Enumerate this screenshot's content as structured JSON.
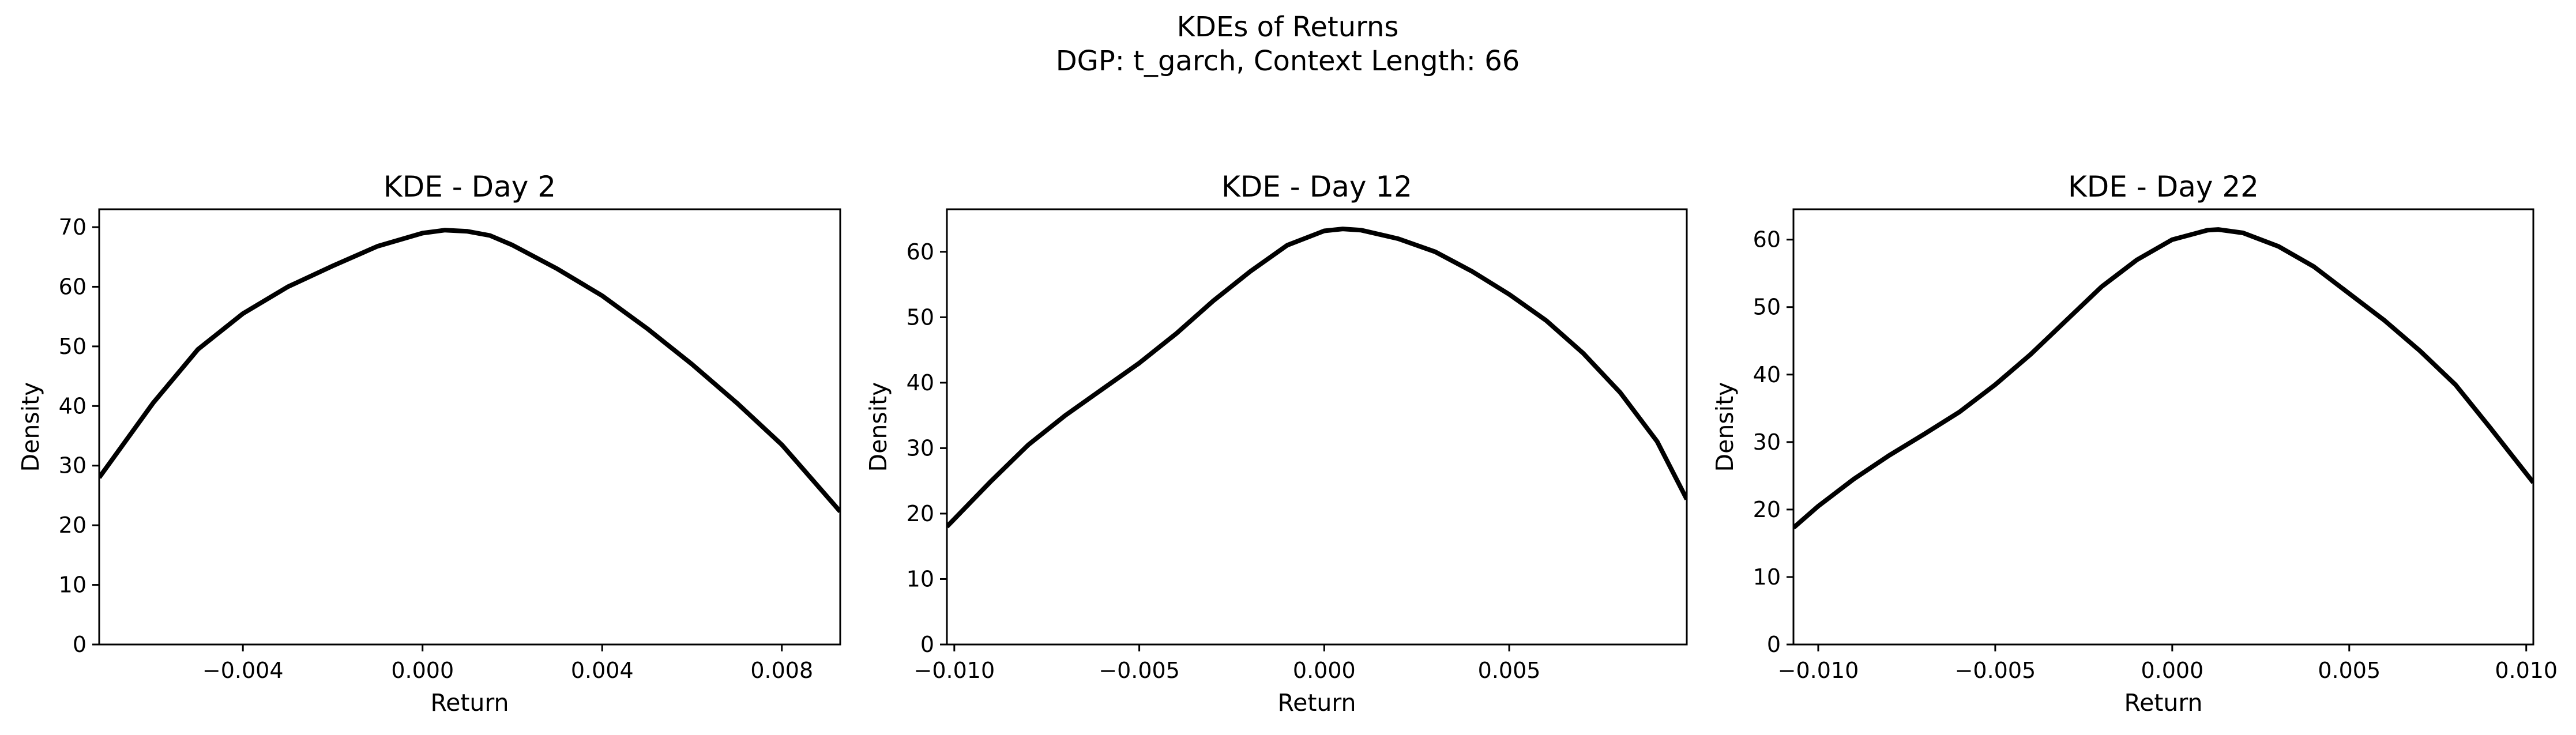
{
  "figure": {
    "title_line1": "KDEs of Returns",
    "title_line2": "DGP: t_garch, Context Length: 66"
  },
  "chart_data": [
    {
      "type": "line",
      "title": "KDE - Day 2",
      "xlabel": "Return",
      "ylabel": "Density",
      "xlim": [
        -0.0072,
        0.0093
      ],
      "ylim": [
        0,
        73
      ],
      "xticks": [
        -0.004,
        0.0,
        0.004,
        0.008
      ],
      "xtick_labels": [
        "−0.004",
        "0.000",
        "0.004",
        "0.008"
      ],
      "yticks": [
        0,
        10,
        20,
        30,
        40,
        50,
        60,
        70
      ],
      "ytick_labels": [
        "0",
        "10",
        "20",
        "30",
        "40",
        "50",
        "60",
        "70"
      ],
      "grid": false,
      "line_color": "#000000",
      "series": [
        {
          "x": [
            -0.0072,
            -0.006,
            -0.005,
            -0.004,
            -0.003,
            -0.002,
            -0.001,
            0.0,
            0.0005,
            0.001,
            0.0015,
            0.002,
            0.003,
            0.004,
            0.005,
            0.006,
            0.007,
            0.008,
            0.0093
          ],
          "y": [
            28,
            40.5,
            49.5,
            55.5,
            60,
            63.5,
            66.8,
            69,
            69.5,
            69.3,
            68.6,
            67,
            63,
            58.5,
            53,
            47,
            40.5,
            33.5,
            22.3
          ]
        }
      ]
    },
    {
      "type": "line",
      "title": "KDE - Day 12",
      "xlabel": "Return",
      "ylabel": "Density",
      "xlim": [
        -0.0102,
        0.0098
      ],
      "ylim": [
        0,
        66.5
      ],
      "xticks": [
        -0.01,
        -0.005,
        0.0,
        0.005
      ],
      "xtick_labels": [
        "−0.010",
        "−0.005",
        "0.000",
        "0.005"
      ],
      "yticks": [
        0,
        10,
        20,
        30,
        40,
        50,
        60
      ],
      "ytick_labels": [
        "0",
        "10",
        "20",
        "30",
        "40",
        "50",
        "60"
      ],
      "grid": false,
      "line_color": "#000000",
      "series": [
        {
          "x": [
            -0.0102,
            -0.009,
            -0.008,
            -0.007,
            -0.006,
            -0.005,
            -0.004,
            -0.003,
            -0.002,
            -0.001,
            0.0,
            0.0005,
            0.001,
            0.002,
            0.003,
            0.004,
            0.005,
            0.006,
            0.007,
            0.008,
            0.009,
            0.0098
          ],
          "y": [
            18,
            25,
            30.5,
            35,
            39,
            43,
            47.5,
            52.5,
            57,
            61,
            63.2,
            63.5,
            63.3,
            62,
            60,
            57,
            53.5,
            49.5,
            44.5,
            38.5,
            31,
            22.2
          ]
        }
      ]
    },
    {
      "type": "line",
      "title": "KDE - Day 22",
      "xlabel": "Return",
      "ylabel": "Density",
      "xlim": [
        -0.0107,
        0.0102
      ],
      "ylim": [
        0,
        64.5
      ],
      "xticks": [
        -0.01,
        -0.005,
        0.0,
        0.005,
        0.01
      ],
      "xtick_labels": [
        "−0.010",
        "−0.005",
        "0.000",
        "0.005",
        "0.010"
      ],
      "yticks": [
        0,
        10,
        20,
        30,
        40,
        50,
        60
      ],
      "ytick_labels": [
        "0",
        "10",
        "20",
        "30",
        "40",
        "50",
        "60"
      ],
      "grid": false,
      "line_color": "#000000",
      "series": [
        {
          "x": [
            -0.0107,
            -0.01,
            -0.009,
            -0.008,
            -0.007,
            -0.006,
            -0.005,
            -0.004,
            -0.003,
            -0.002,
            -0.001,
            0.0,
            0.001,
            0.0013,
            0.002,
            0.003,
            0.004,
            0.005,
            0.006,
            0.007,
            0.008,
            0.009,
            0.0102
          ],
          "y": [
            17.3,
            20.5,
            24.5,
            28,
            31.2,
            34.5,
            38.5,
            43,
            48,
            53,
            57,
            60,
            61.4,
            61.5,
            61,
            59,
            56,
            52,
            48,
            43.5,
            38.5,
            32,
            24
          ]
        }
      ]
    }
  ]
}
